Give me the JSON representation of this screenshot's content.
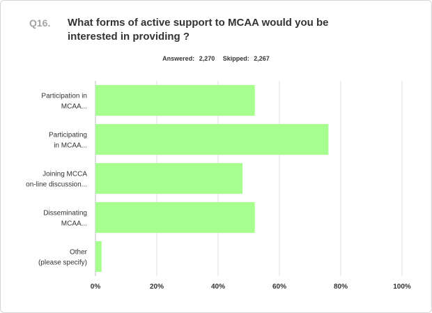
{
  "question": {
    "number": "Q16.",
    "title": "What forms of active support to MCAA would you be interested in providing ?"
  },
  "stats": {
    "answered_label": "Answered:",
    "answered_value": "2,270",
    "skipped_label": "Skipped:",
    "skipped_value": "2,267"
  },
  "colors": {
    "bar": "#a6ff8f",
    "grid": "#dddddd",
    "axis": "#bbbbbb"
  },
  "chart_data": {
    "type": "bar",
    "orientation": "horizontal",
    "title": "",
    "xlabel": "",
    "ylabel": "",
    "categories": [
      [
        "Participation in",
        "MCAA..."
      ],
      [
        "Participating",
        "in MCAA..."
      ],
      [
        "Joining MCCA",
        "on-line discussion..."
      ],
      [
        "Disseminating",
        "MCAA..."
      ],
      [
        "Other",
        "(please specify)"
      ]
    ],
    "values": [
      52,
      76,
      48,
      52,
      2
    ],
    "xlim": [
      0,
      100
    ],
    "ticks": [
      "0%",
      "20%",
      "40%",
      "60%",
      "80%",
      "100%"
    ],
    "tick_values": [
      0,
      20,
      40,
      60,
      80,
      100
    ],
    "grid": true
  }
}
